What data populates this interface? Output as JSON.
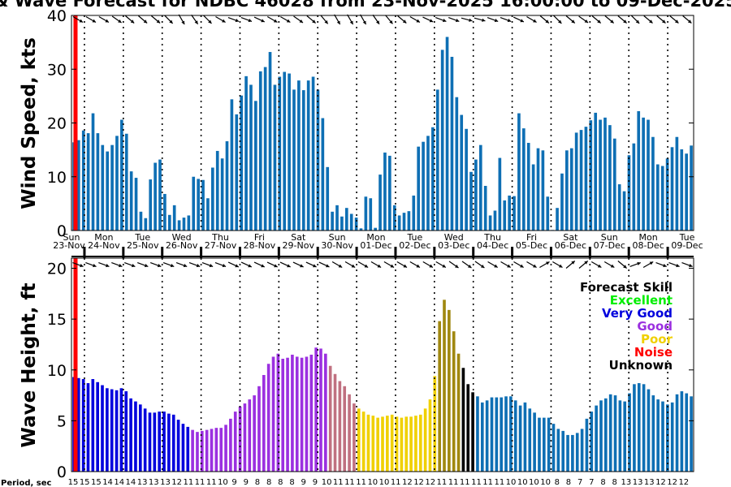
{
  "title": "& Wave Forecast for NDBC 46028 from 23-Nov-2025 16:00:00 to 09-Dec-2025",
  "colors": {
    "wind_bar": "#0e6fb4",
    "now_line": "#ff0000",
    "excellent": "#00ee00",
    "very_good": "#0000dd",
    "good": "#9b30e0",
    "poor": "#f0d000",
    "noise": "#ff0000",
    "unknown": "#000000"
  },
  "days": [
    "Sun",
    "Mon",
    "Tue",
    "Wed",
    "Thu",
    "Fri",
    "Sat",
    "Sun",
    "Mon",
    "Tue",
    "Wed",
    "Thu",
    "Fri",
    "Sat",
    "Sun",
    "Mon",
    "Tue"
  ],
  "dates": [
    "23-Nov",
    "24-Nov",
    "25-Nov",
    "26-Nov",
    "27-Nov",
    "28-Nov",
    "29-Nov",
    "30-Nov",
    "01-Dec",
    "02-Dec",
    "03-Dec",
    "04-Dec",
    "05-Dec",
    "06-Dec",
    "07-Dec",
    "08-Dec",
    "09-Dec"
  ],
  "legend": {
    "title": "Forecast Skill",
    "items": [
      {
        "label": "Excellent",
        "color": "#00ee00"
      },
      {
        "label": "Very Good",
        "color": "#0000dd"
      },
      {
        "label": "Good",
        "color": "#9b30e0"
      },
      {
        "label": "Poor",
        "color": "#f0d000"
      },
      {
        "label": "Noise",
        "color": "#ff0000"
      },
      {
        "label": "Unknown",
        "color": "#000000"
      }
    ]
  },
  "period_label": "Period, sec",
  "periods": [
    15,
    15,
    15,
    14,
    14,
    14,
    13,
    13,
    13,
    12,
    11,
    11,
    11,
    10,
    9,
    9,
    8,
    8,
    8,
    8,
    9,
    9,
    10,
    11,
    11,
    11,
    10,
    10,
    11,
    12,
    12,
    12,
    11,
    11,
    11,
    11,
    11,
    11,
    10,
    10,
    10,
    10,
    8,
    8,
    7,
    7,
    8,
    8,
    13,
    13,
    13,
    12,
    12,
    12
  ],
  "chart_data": [
    {
      "type": "bar",
      "ylabel": "Wind Speed, kts",
      "ylim": [
        0,
        40
      ],
      "yticks": [
        0,
        10,
        20,
        30,
        40
      ],
      "xlim": [
        0,
        384
      ],
      "x_units": "hours since 23-Nov 16:00",
      "dt_hours": 3,
      "values": [
        16.4,
        16.8,
        18.6,
        18.1,
        21.8,
        18.1,
        15.9,
        14.7,
        15.9,
        17.6,
        20.6,
        18.0,
        11.0,
        9.8,
        3.5,
        2.3,
        9.5,
        12.6,
        13.2,
        6.8,
        2.9,
        4.7,
        1.9,
        2.4,
        2.8,
        10.0,
        9.6,
        9.4,
        6.0,
        11.7,
        14.8,
        13.4,
        16.6,
        24.4,
        21.6,
        25.1,
        28.7,
        27.1,
        24.1,
        29.6,
        30.4,
        33.2,
        27.1,
        28.6,
        29.5,
        29.2,
        26.2,
        27.9,
        26.1,
        27.9,
        28.6,
        26.2,
        20.9,
        11.8,
        3.5,
        4.7,
        2.6,
        4.2,
        3.1,
        2.4,
        0.4,
        6.3,
        6.0,
        0.5,
        10.4,
        14.5,
        13.9,
        4.7,
        2.8,
        3.3,
        3.6,
        6.5,
        15.6,
        16.5,
        17.6,
        19.2,
        26.2,
        33.6,
        36.0,
        32.3,
        24.8,
        21.5,
        18.9,
        10.9,
        13.2,
        15.9,
        8.3,
        2.8,
        3.7,
        13.5,
        5.6,
        6.5,
        6.4,
        21.8,
        19.0,
        16.3,
        12.3,
        15.3,
        14.9,
        6.3,
        0.1,
        4.2,
        10.6,
        14.9,
        15.3,
        18.2,
        18.7,
        19.3,
        20.5,
        21.9,
        20.6,
        21.0,
        19.6,
        17.1,
        8.6,
        7.3,
        14.0,
        16.2,
        22.2,
        21.0,
        20.6,
        17.4,
        12.3,
        12.0,
        13.4,
        15.5,
        17.4,
        15.1,
        14.3,
        15.8
      ],
      "now_x": 2.5,
      "arrow_angles_deg": [
        30,
        30,
        30,
        35,
        40,
        40,
        40,
        45,
        60,
        55,
        45,
        30,
        20,
        20,
        25,
        30,
        30,
        35,
        40,
        50,
        60,
        60,
        60,
        55,
        50,
        40,
        30,
        25,
        20,
        20,
        15,
        15,
        20,
        20,
        25,
        30,
        40,
        45,
        40,
        35,
        40,
        40,
        40,
        45,
        40,
        40,
        40,
        40
      ]
    },
    {
      "type": "bar",
      "ylabel": "Wave Height, ft",
      "ylim": [
        0,
        21
      ],
      "yticks": [
        0,
        5,
        10,
        15,
        20
      ],
      "xlim": [
        0,
        384
      ],
      "x_units": "hours since 23-Nov 16:00",
      "dt_hours": 3,
      "values": [
        9.3,
        9.2,
        9.1,
        8.7,
        9.1,
        8.8,
        8.5,
        8.2,
        8.1,
        8.0,
        8.2,
        7.9,
        7.2,
        6.9,
        6.6,
        6.2,
        5.8,
        5.8,
        5.9,
        5.9,
        5.7,
        5.6,
        5.1,
        4.7,
        4.4,
        4.1,
        3.9,
        4.0,
        4.1,
        4.2,
        4.3,
        4.3,
        4.6,
        5.2,
        5.9,
        6.4,
        6.7,
        7.1,
        7.5,
        8.4,
        9.5,
        10.6,
        11.3,
        11.6,
        11.1,
        11.2,
        11.5,
        11.3,
        11.2,
        11.3,
        11.5,
        12.2,
        12.1,
        11.6,
        10.4,
        9.6,
        8.9,
        8.4,
        7.6,
        6.7,
        6.2,
        5.9,
        5.6,
        5.5,
        5.3,
        5.4,
        5.5,
        5.6,
        5.4,
        5.3,
        5.4,
        5.4,
        5.5,
        5.6,
        6.2,
        7.1,
        9.4,
        14.8,
        16.9,
        15.9,
        13.8,
        11.6,
        10.2,
        8.6,
        7.8,
        7.4,
        6.8,
        7.0,
        7.3,
        7.3,
        7.3,
        7.4,
        7.4,
        7.0,
        6.5,
        6.8,
        6.2,
        5.8,
        5.3,
        5.3,
        5.3,
        4.7,
        4.2,
        4.0,
        3.6,
        3.6,
        3.8,
        4.2,
        5.2,
        5.9,
        6.5,
        7.0,
        7.2,
        7.6,
        7.5,
        7.0,
        6.9,
        7.7,
        8.6,
        8.7,
        8.6,
        8.1,
        7.5,
        7.1,
        6.9,
        6.6,
        6.8,
        7.6,
        7.9,
        7.7,
        7.4
      ],
      "skill": [
        "vg",
        "vg",
        "vg",
        "vg",
        "vg",
        "vg",
        "vg",
        "vg",
        "vg",
        "vg",
        "vg",
        "vg",
        "vg",
        "vg",
        "vg",
        "vg",
        "vg",
        "vg",
        "vg",
        "vg",
        "vg",
        "vg",
        "vg",
        "vg",
        "vg",
        "g",
        "g",
        "g",
        "g",
        "g",
        "g",
        "g",
        "g",
        "g",
        "g",
        "g",
        "g",
        "g",
        "g",
        "g",
        "g",
        "g",
        "g",
        "g",
        "g",
        "g",
        "g",
        "g",
        "g",
        "g",
        "g",
        "g",
        "g",
        "g",
        "gp",
        "gp",
        "gp",
        "gp",
        "gp",
        "gp",
        "p",
        "p",
        "p",
        "p",
        "p",
        "p",
        "p",
        "p",
        "p",
        "p",
        "p",
        "p",
        "p",
        "p",
        "p",
        "p",
        "p",
        "pk",
        "pk",
        "pk",
        "pk",
        "pk",
        "u",
        "u",
        "u",
        "wb",
        "wb",
        "wb",
        "wb",
        "wb",
        "wb",
        "wb",
        "wb",
        "wb",
        "wb",
        "wb",
        "wb",
        "wb",
        "wb",
        "wb",
        "wb",
        "wb",
        "wb",
        "wb",
        "wb",
        "wb",
        "wb",
        "wb",
        "wb",
        "wb",
        "wb",
        "wb",
        "wb",
        "wb",
        "wb",
        "wb",
        "wb",
        "wb",
        "wb",
        "wb",
        "wb",
        "wb",
        "wb",
        "wb",
        "wb",
        "wb",
        "wb",
        "wb",
        "wb",
        "wb",
        "wb",
        "wb"
      ],
      "skill_colors": {
        "vg": "#0000dd",
        "g": "#9b30e0",
        "gp": "#c07080",
        "p": "#f0d000",
        "pk": "#a08810",
        "u": "#000000",
        "wb": "#0e6fb4"
      },
      "now_x": 2.5,
      "arrow_angles_deg": [
        20,
        20,
        20,
        20,
        20,
        20,
        20,
        20,
        20,
        20,
        20,
        20,
        25,
        25,
        25,
        25,
        25,
        25,
        25,
        25,
        30,
        30,
        30,
        30,
        30,
        30,
        30,
        30,
        30,
        35,
        35,
        35,
        30,
        30,
        30,
        30,
        -30,
        30,
        -40,
        -40,
        30,
        30,
        40,
        -20,
        -30,
        20,
        20,
        20
      ]
    }
  ]
}
